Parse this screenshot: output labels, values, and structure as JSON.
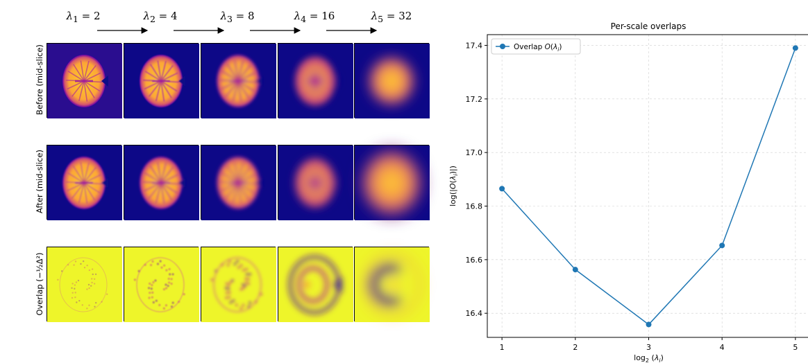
{
  "scales": [
    {
      "label": "λ1 = 2",
      "sub": "1",
      "value": "2"
    },
    {
      "label": "λ2 = 4",
      "sub": "2",
      "value": "4"
    },
    {
      "label": "λ3 = 8",
      "sub": "3",
      "value": "8"
    },
    {
      "label": "λ4 = 16",
      "sub": "4",
      "value": "16"
    },
    {
      "label": "λ5 = 32",
      "sub": "5",
      "value": "32"
    }
  ],
  "rows": [
    {
      "label": "Before (mid-slice)",
      "kind": "before"
    },
    {
      "label": "After (mid-slice)",
      "kind": "after"
    },
    {
      "label": "Overlap (−½Δ²)",
      "kind": "overlap"
    }
  ],
  "colors": {
    "plasma_dark": "#0d0887",
    "plasma_bg": "#2a0d8f",
    "plasma_mid": "#b12a90",
    "plasma_light": "#fdca26",
    "overlap_bg": "#eef52a",
    "line": "#1f77b4"
  },
  "chart_data": {
    "type": "line",
    "title": "Per-scale overlaps",
    "xlabel": "log2 (λi)",
    "ylabel": "log(|O(λi)|)",
    "x": [
      1,
      2,
      3,
      4,
      5
    ],
    "series": [
      {
        "name": "Overlap O(λi)",
        "values": [
          16.865,
          16.563,
          16.358,
          16.653,
          17.39
        ]
      }
    ],
    "xticks": [
      "1",
      "2",
      "3",
      "4",
      "5"
    ],
    "yticks": [
      "16.4",
      "16.6",
      "16.8",
      "17.0",
      "17.2",
      "17.4"
    ],
    "xlim": [
      0.8,
      5.2
    ],
    "ylim": [
      16.31,
      17.44
    ],
    "grid": true,
    "legend_position": "top-left",
    "marker": "circle"
  }
}
